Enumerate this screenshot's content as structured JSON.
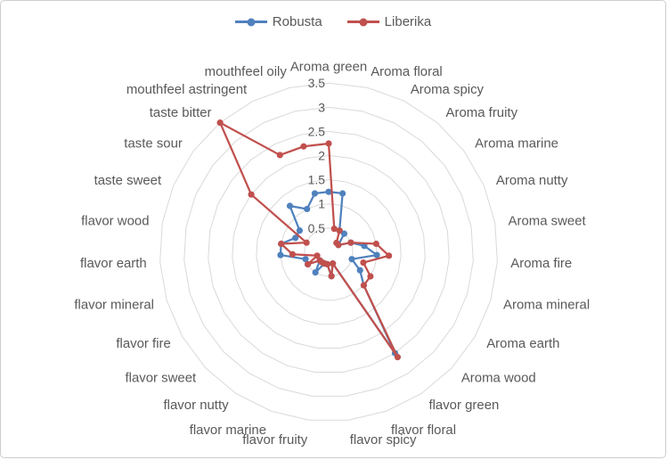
{
  "window": {
    "background": "#ffffff",
    "border_color": "#cdcdcd"
  },
  "chart_data": {
    "type": "radar",
    "title": "",
    "legend_position": "top",
    "grid": true,
    "grid_color": "#D9D9D9",
    "label_color": "#595959",
    "categories": [
      "Aroma green",
      "Aroma floral",
      "Aroma spicy",
      "Aroma fruity",
      "Aroma marine",
      "Aroma nutty",
      "Aroma sweet",
      "Aroma fire",
      "Aroma mineral",
      "Aroma earth",
      "Aroma wood",
      "flavor green",
      "flavor floral",
      "flavor spicy",
      "flavor fruity",
      "flavor marine",
      "flavor nutty",
      "flavor sweet",
      "flavor fire",
      "flavor mineral",
      "flavor earth",
      "flavor wood",
      "taste sweet",
      "taste sour",
      "taste bitter",
      "mouthfeel astringent",
      "mouthfeel oily"
    ],
    "radial_axis": {
      "min": 0,
      "max": 3.5,
      "step": 0.5,
      "tick_labels": [
        "0.5",
        "1",
        "1.5",
        "2",
        "2.5",
        "3",
        "3.5"
      ]
    },
    "series": [
      {
        "name": "Robusta",
        "color": "#4F81BD",
        "values": [
          1.25,
          1.25,
          0.5,
          0.5,
          0.25,
          0.5,
          0.75,
          1.0,
          0.5,
          0.75,
          1.0,
          2.5,
          0.25,
          0.5,
          0.25,
          0.25,
          0.5,
          0.25,
          0.5,
          0.5,
          1.0,
          1.0,
          0.75,
          0.75,
          1.25,
          1.0,
          1.25
        ]
      },
      {
        "name": "Liberika",
        "color": "#C0504D",
        "values": [
          2.25,
          0.5,
          0.5,
          0.25,
          0.25,
          0.5,
          1.0,
          1.25,
          0.75,
          1.0,
          1.0,
          2.6,
          0.25,
          0.5,
          0.25,
          0.25,
          0.25,
          0.25,
          0.5,
          0.25,
          0.75,
          1.0,
          0.5,
          2.0,
          3.5,
          2.25,
          2.25
        ]
      }
    ]
  }
}
